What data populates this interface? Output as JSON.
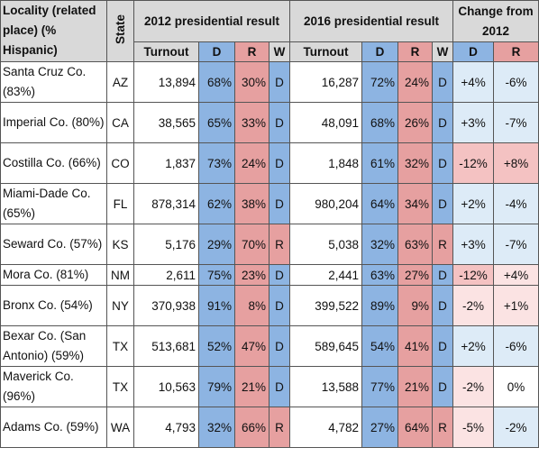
{
  "headers": {
    "locality": "Locality (related place) (% Hispanic)",
    "state": "State",
    "result_2012": "2012 presidential result",
    "result_2016": "2016 presidential result",
    "change": "Change from 2012",
    "turnout": "Turnout",
    "d": "D",
    "r": "R",
    "w": "W"
  },
  "rows": [
    {
      "locality": "Santa Cruz Co. (83%)",
      "state": "AZ",
      "t12": "13,894",
      "d12": "68%",
      "r12": "30%",
      "w12": "D",
      "t16": "16,287",
      "d16": "72%",
      "r16": "24%",
      "w16": "D",
      "cd": "+4%",
      "cr": "-6%"
    },
    {
      "locality": "Imperial Co. (80%)",
      "state": "CA",
      "t12": "38,565",
      "d12": "65%",
      "r12": "33%",
      "w12": "D",
      "t16": "48,091",
      "d16": "68%",
      "r16": "26%",
      "w16": "D",
      "cd": "+3%",
      "cr": "-7%"
    },
    {
      "locality": "Costilla Co. (66%)",
      "state": "CO",
      "t12": "1,837",
      "d12": "73%",
      "r12": "24%",
      "w12": "D",
      "t16": "1,848",
      "d16": "61%",
      "r16": "32%",
      "w16": "D",
      "cd": "-12%",
      "cr": "+8%"
    },
    {
      "locality": "Miami-Dade Co. (65%)",
      "state": "FL",
      "t12": "878,314",
      "d12": "62%",
      "r12": "38%",
      "w12": "D",
      "t16": "980,204",
      "d16": "64%",
      "r16": "34%",
      "w16": "D",
      "cd": "+2%",
      "cr": "-4%"
    },
    {
      "locality": "Seward Co. (57%)",
      "state": "KS",
      "t12": "5,176",
      "d12": "29%",
      "r12": "70%",
      "w12": "R",
      "t16": "5,038",
      "d16": "32%",
      "r16": "63%",
      "w16": "R",
      "cd": "+3%",
      "cr": "-7%"
    },
    {
      "locality": "Mora Co. (81%)",
      "state": "NM",
      "t12": "2,611",
      "d12": "75%",
      "r12": "23%",
      "w12": "D",
      "t16": "2,441",
      "d16": "63%",
      "r16": "27%",
      "w16": "D",
      "cd": "-12%",
      "cr": "+4%"
    },
    {
      "locality": "Bronx Co. (54%)",
      "state": "NY",
      "t12": "370,938",
      "d12": "91%",
      "r12": "8%",
      "w12": "D",
      "t16": "399,522",
      "d16": "89%",
      "r16": "9%",
      "w16": "D",
      "cd": "-2%",
      "cr": "+1%"
    },
    {
      "locality": "Bexar Co. (San Antonio) (59%)",
      "state": "TX",
      "t12": "513,681",
      "d12": "52%",
      "r12": "47%",
      "w12": "D",
      "t16": "589,645",
      "d16": "54%",
      "r16": "41%",
      "w16": "D",
      "cd": "+2%",
      "cr": "-6%"
    },
    {
      "locality": "Maverick Co. (96%)",
      "state": "TX",
      "t12": "10,563",
      "d12": "79%",
      "r12": "21%",
      "w12": "D",
      "t16": "13,588",
      "d16": "77%",
      "r16": "21%",
      "w16": "D",
      "cd": "-2%",
      "cr": "0%"
    },
    {
      "locality": "Adams Co. (59%)",
      "state": "WA",
      "t12": "4,793",
      "d12": "32%",
      "r12": "66%",
      "w12": "R",
      "t16": "4,782",
      "d16": "27%",
      "r16": "64%",
      "w16": "R",
      "cd": "-5%",
      "cr": "-2%"
    }
  ]
}
